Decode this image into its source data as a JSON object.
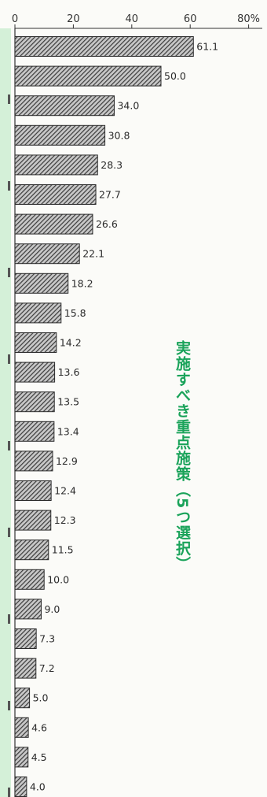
{
  "caption": "実施すべき重点施策（5つ選択）",
  "chart_data": {
    "type": "bar",
    "orientation": "horizontal",
    "x_ticks": [
      "0",
      "20",
      "40",
      "60",
      "80%"
    ],
    "xlim": [
      0,
      80
    ],
    "values": [
      61.1,
      50.0,
      34.0,
      30.8,
      28.3,
      27.7,
      26.6,
      22.1,
      18.2,
      15.8,
      14.2,
      13.6,
      13.5,
      13.4,
      12.9,
      12.4,
      12.3,
      11.5,
      10.0,
      9.0,
      7.3,
      7.2,
      5.0,
      4.6,
      4.5,
      4.0
    ],
    "value_labels": [
      "61.1",
      "50.0",
      "34.0",
      "30.8",
      "28.3",
      "27.7",
      "26.6",
      "22.1",
      "18.2",
      "15.8",
      "14.2",
      "13.6",
      "13.5",
      "13.4",
      "12.9",
      "12.4",
      "12.3",
      "11.5",
      "10.0",
      "9.0",
      "7.3",
      "7.2",
      "5.0",
      "4.6",
      "4.5",
      "4.0"
    ],
    "bar_fill": "#555555",
    "bar_pattern": "diagonal-hatch",
    "left_strip_color": "#d4f0d8"
  }
}
